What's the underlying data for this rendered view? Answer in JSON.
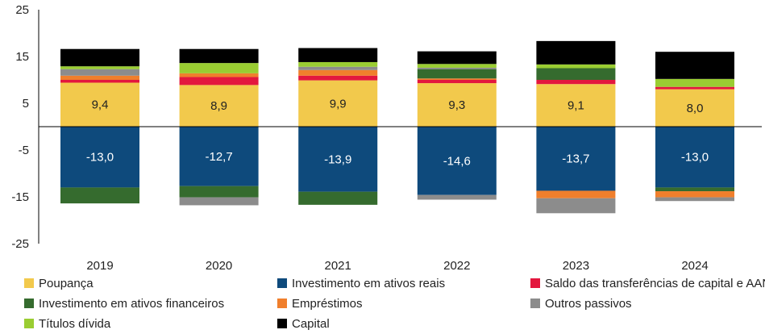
{
  "chart_data": {
    "type": "bar",
    "stacked": true,
    "categories": [
      "2019",
      "2020",
      "2021",
      "2022",
      "2023",
      "2024"
    ],
    "ylim": [
      -25,
      25
    ],
    "yticks": [
      "25",
      "15",
      "5",
      "-5",
      "-15",
      "-25"
    ],
    "ytick_values": [
      25,
      15,
      5,
      -5,
      -15,
      -25
    ],
    "grid": false,
    "legend_position": "bottom",
    "positive_series": [
      {
        "name": "Poupança",
        "color": "#F2C94C",
        "values": [
          9.4,
          8.9,
          9.9,
          9.3,
          9.1,
          8.0
        ],
        "labels": [
          "9,4",
          "8,9",
          "9,9",
          "9,3",
          "9,1",
          "8,0"
        ]
      },
      {
        "name": "Saldo das transferências de capital e AANP",
        "color": "#E3173E",
        "values": [
          0.6,
          1.7,
          1.0,
          0.7,
          0.9,
          0.5
        ]
      },
      {
        "name": "Empréstimos",
        "color": "#F07F2C",
        "values": [
          0.9,
          0.8,
          1.2,
          0.3,
          0,
          0
        ]
      },
      {
        "name": "Investimento em ativos financeiros",
        "color": "#356B2E",
        "values": [
          0,
          0,
          0,
          2.0,
          2.5,
          0
        ]
      },
      {
        "name": "Outros passivos",
        "color": "#8C8C8C",
        "values": [
          1.4,
          0,
          0.7,
          0.3,
          0,
          0
        ]
      },
      {
        "name": "Títulos dívida",
        "color": "#9ACD32",
        "values": [
          0.6,
          2.2,
          1.0,
          0.8,
          0.8,
          1.7
        ]
      },
      {
        "name": "Capital",
        "color": "#000000",
        "values": [
          3.7,
          3.0,
          3.0,
          2.7,
          5.0,
          5.8
        ]
      }
    ],
    "negative_series": [
      {
        "name": "Investimento em ativos reais",
        "color": "#0E4A7C",
        "values": [
          -13.0,
          -12.7,
          -13.9,
          -14.6,
          -13.7,
          -13.0
        ],
        "labels": [
          "-13,0",
          "-12,7",
          "-13,9",
          "-14,6",
          "-13,7",
          "-13,0"
        ]
      },
      {
        "name": "Investimento em ativos financeiros",
        "color": "#356B2E",
        "values": [
          -3.4,
          -2.4,
          -2.8,
          0,
          0,
          -0.8
        ]
      },
      {
        "name": "Empréstimos",
        "color": "#F07F2C",
        "values": [
          0,
          0,
          0,
          0,
          -1.6,
          -1.3
        ]
      },
      {
        "name": "Outros passivos",
        "color": "#8C8C8C",
        "values": [
          0,
          -1.7,
          0,
          -1.0,
          -3.2,
          -0.8
        ]
      }
    ]
  },
  "legend": [
    {
      "label": "Poupança",
      "color": "#F2C94C"
    },
    {
      "label": "Investimento em ativos reais",
      "color": "#0E4A7C"
    },
    {
      "label": "Saldo das transferências de capital e AANP",
      "color": "#E3173E"
    },
    {
      "label": "Investimento em ativos financeiros",
      "color": "#356B2E"
    },
    {
      "label": "Empréstimos",
      "color": "#F07F2C"
    },
    {
      "label": "Outros passivos",
      "color": "#8C8C8C"
    },
    {
      "label": "Títulos dívida",
      "color": "#9ACD32"
    },
    {
      "label": "Capital",
      "color": "#000000"
    }
  ]
}
